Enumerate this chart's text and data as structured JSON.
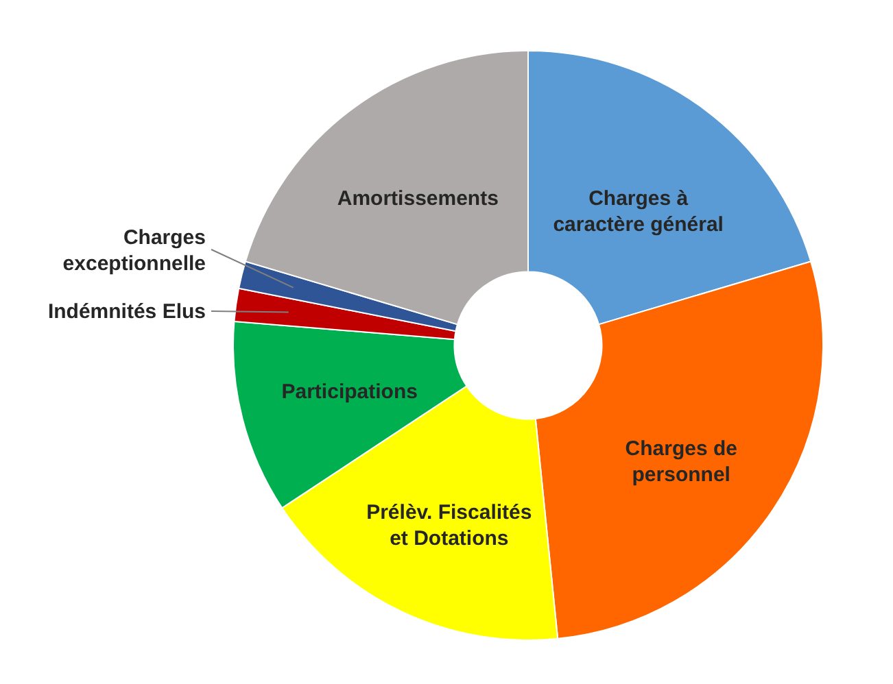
{
  "chart_data": {
    "type": "donut",
    "categories": [
      "Charges à caractère général",
      "Charges de personnel",
      "Prélèv. Fiscalités et Dotations",
      "Participations",
      "Indémnités Elus",
      "Charges exceptionnelle",
      "Amortissements"
    ],
    "values": [
      20.4,
      28.0,
      17.3,
      10.6,
      1.8,
      1.5,
      20.4
    ],
    "colors": [
      "#5b9bd5",
      "#ff6600",
      "#ffff00",
      "#00b050",
      "#c00000",
      "#2f5597",
      "#aeaaaa"
    ]
  }
}
